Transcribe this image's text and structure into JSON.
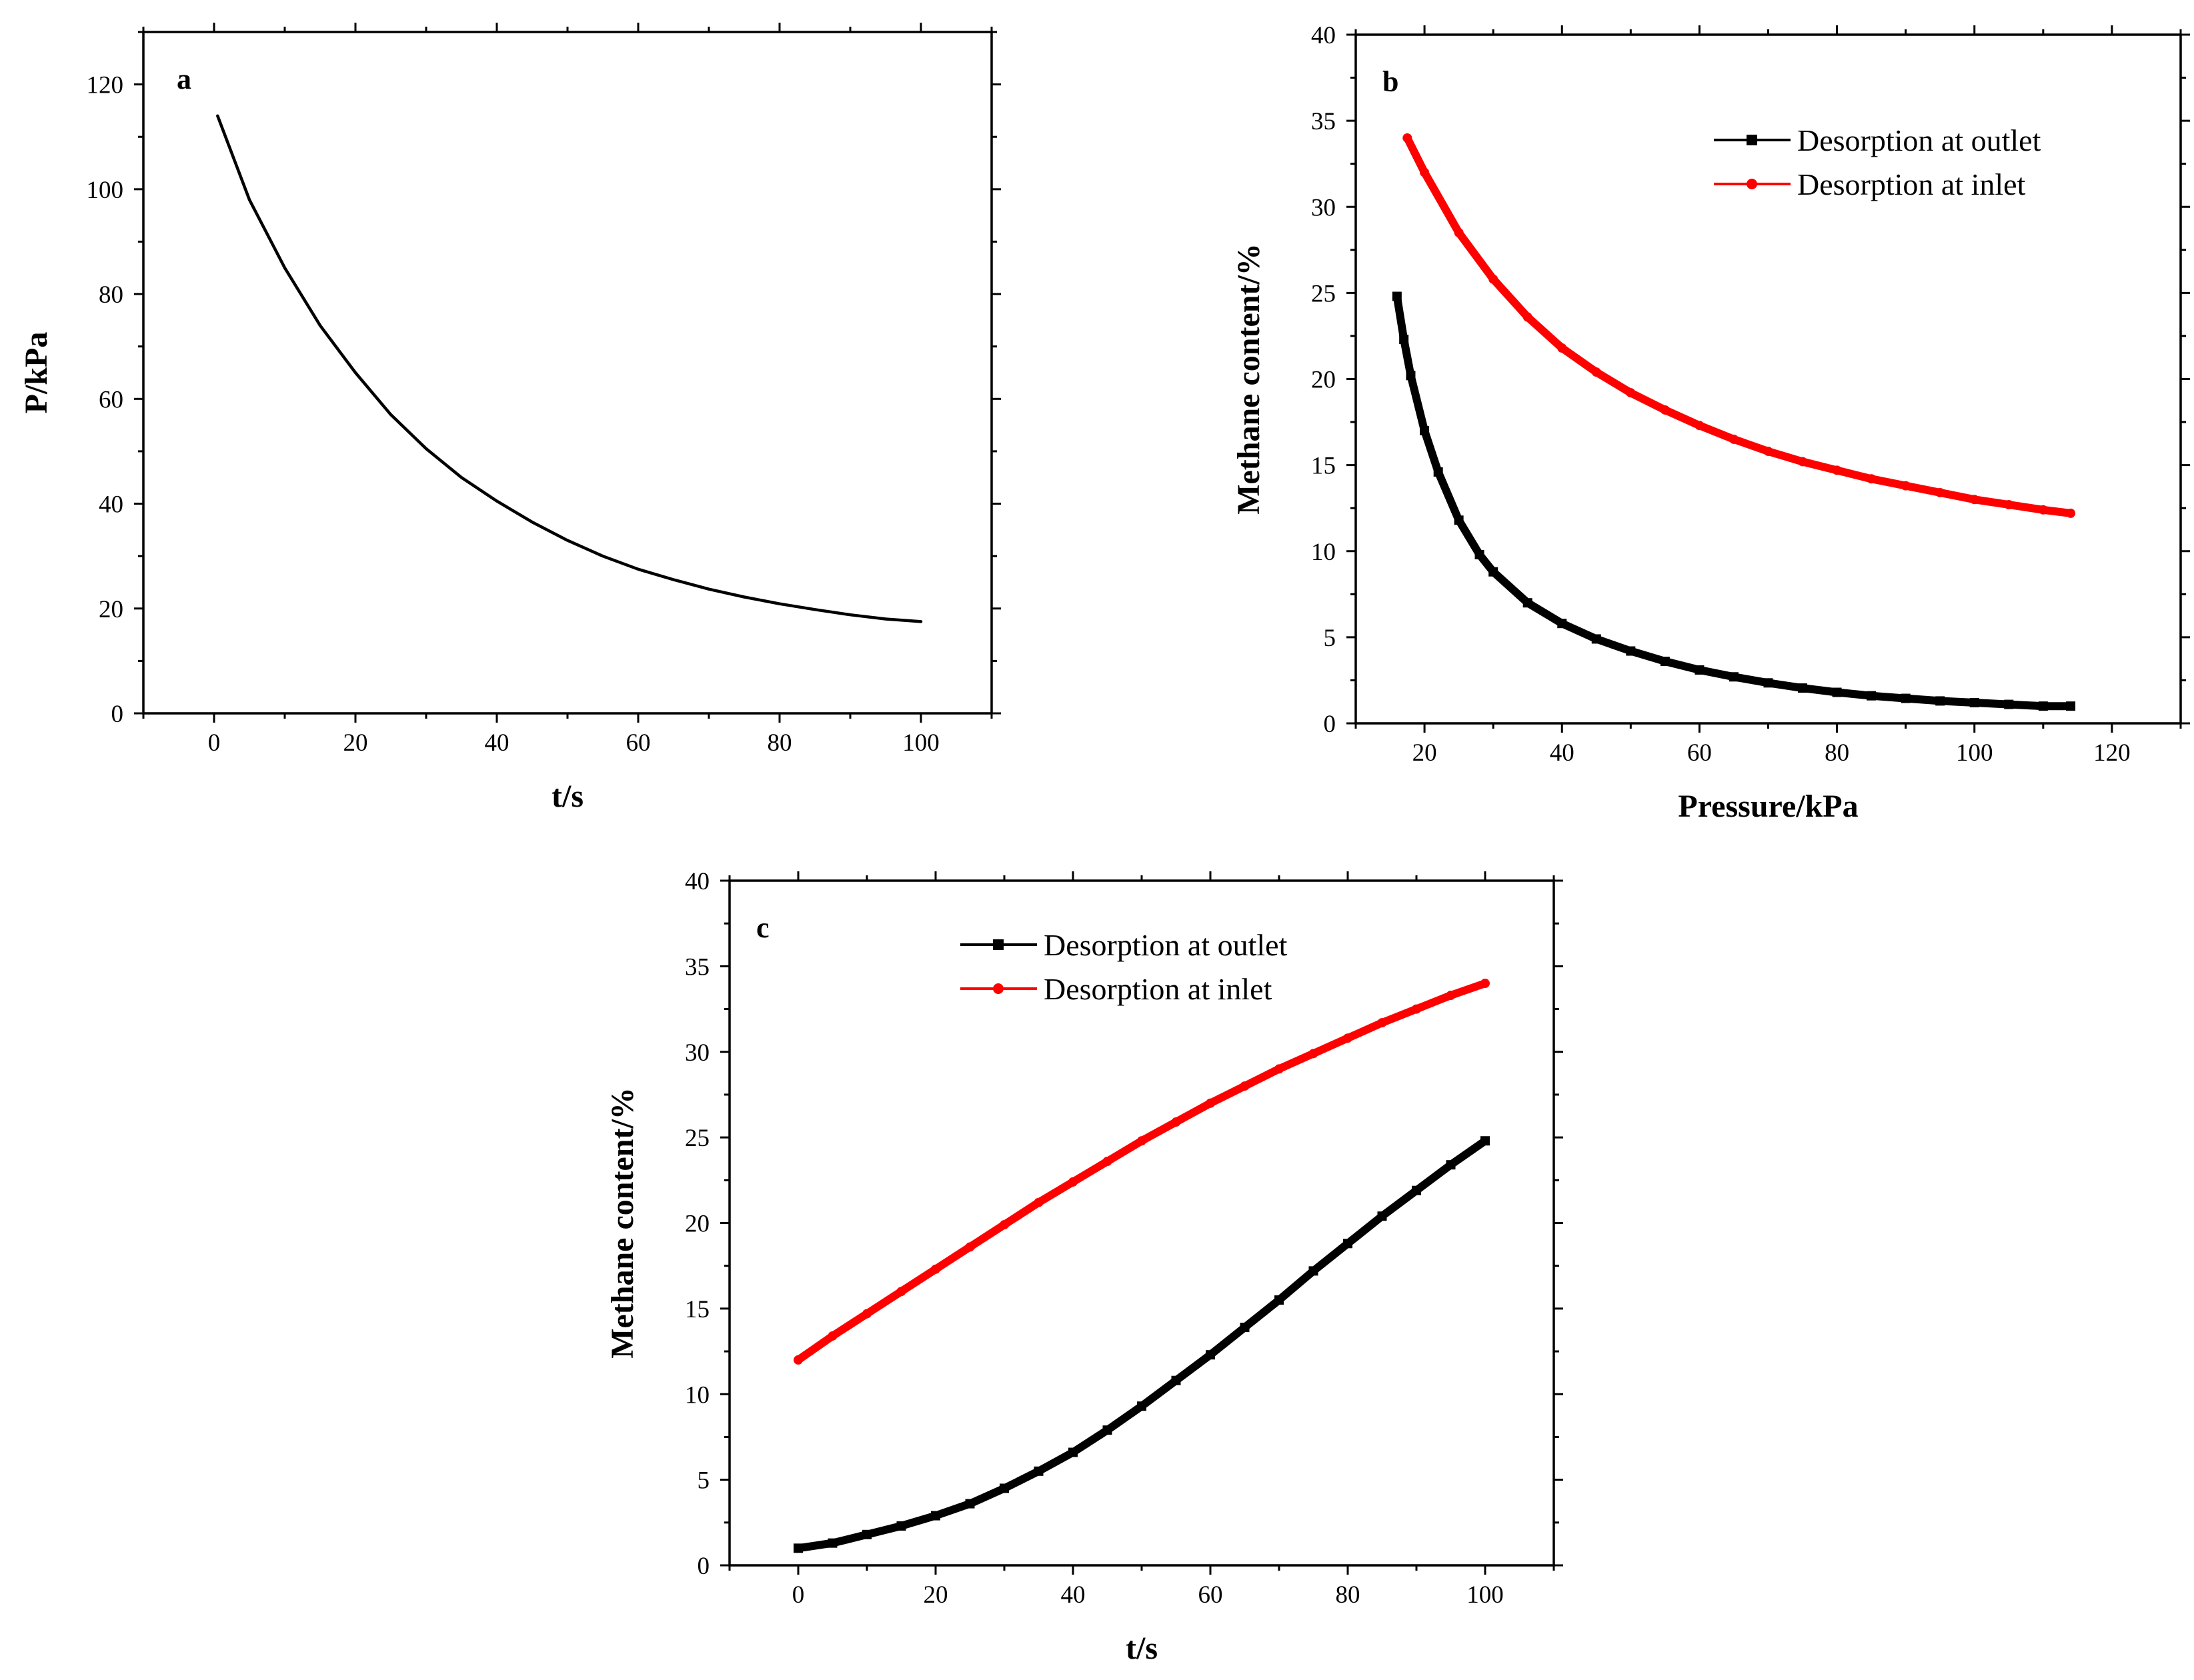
{
  "figure": {
    "description_panels": [
      "a",
      "b",
      "c"
    ]
  },
  "chart_data": [
    {
      "id": "a",
      "type": "line",
      "label": "a",
      "title": "",
      "xlabel": "t/s",
      "ylabel": "P/kPa",
      "xlim": [
        -10,
        110
      ],
      "ylim": [
        0,
        130
      ],
      "xticks": [
        0,
        20,
        40,
        60,
        80,
        100
      ],
      "yticks": [
        0,
        20,
        40,
        60,
        80,
        100,
        120
      ],
      "legend": null,
      "series": [
        {
          "name": "P",
          "color": "#000000",
          "marker": "none",
          "x": [
            0.5,
            5,
            10,
            15,
            20,
            25,
            30,
            35,
            40,
            45,
            50,
            55,
            60,
            65,
            70,
            75,
            80,
            85,
            90,
            95,
            100
          ],
          "y": [
            114,
            98,
            85,
            74,
            65,
            57,
            50.5,
            45,
            40.5,
            36.5,
            33,
            30,
            27.5,
            25.5,
            23.7,
            22.2,
            20.9,
            19.8,
            18.8,
            18.0,
            17.5
          ]
        }
      ]
    },
    {
      "id": "b",
      "type": "line",
      "label": "b",
      "title": "",
      "xlabel": "Pressure/kPa",
      "ylabel": "Methane content/%",
      "xlim": [
        10,
        130
      ],
      "ylim": [
        0,
        40
      ],
      "xticks": [
        20,
        40,
        60,
        80,
        100,
        120
      ],
      "yticks": [
        0,
        5,
        10,
        15,
        20,
        25,
        30,
        35,
        40
      ],
      "legend": "top-right",
      "series": [
        {
          "name": "Desorption at outlet",
          "color": "#000000",
          "marker": "square",
          "x": [
            16,
            17,
            18,
            20,
            22,
            25,
            28,
            30,
            35,
            40,
            45,
            50,
            55,
            60,
            65,
            70,
            75,
            80,
            85,
            90,
            95,
            100,
            105,
            110,
            114
          ],
          "y": [
            24.8,
            22.3,
            20.2,
            17.0,
            14.6,
            11.8,
            9.8,
            8.8,
            7.0,
            5.8,
            4.9,
            4.2,
            3.6,
            3.1,
            2.7,
            2.35,
            2.05,
            1.8,
            1.6,
            1.45,
            1.3,
            1.2,
            1.1,
            1.0,
            1.0
          ]
        },
        {
          "name": "Desorption at inlet",
          "color": "#ff0000",
          "marker": "circle",
          "x": [
            17.5,
            20,
            25,
            30,
            35,
            40,
            45,
            50,
            55,
            60,
            65,
            70,
            75,
            80,
            85,
            90,
            95,
            100,
            105,
            110,
            114
          ],
          "y": [
            34.0,
            32.0,
            28.5,
            25.8,
            23.6,
            21.8,
            20.4,
            19.2,
            18.2,
            17.3,
            16.5,
            15.8,
            15.2,
            14.7,
            14.2,
            13.8,
            13.4,
            13.0,
            12.7,
            12.4,
            12.2
          ]
        }
      ]
    },
    {
      "id": "c",
      "type": "line",
      "label": "c",
      "title": "",
      "xlabel": "t/s",
      "ylabel": "Methane content/%",
      "xlim": [
        -10,
        110
      ],
      "ylim": [
        0,
        40
      ],
      "xticks": [
        0,
        20,
        40,
        60,
        80,
        100
      ],
      "yticks": [
        0,
        5,
        10,
        15,
        20,
        25,
        30,
        35,
        40
      ],
      "legend": "top-center",
      "series": [
        {
          "name": "Desorption at outlet",
          "color": "#000000",
          "marker": "square",
          "x": [
            0,
            5,
            10,
            15,
            20,
            25,
            30,
            35,
            40,
            45,
            50,
            55,
            60,
            65,
            70,
            75,
            80,
            85,
            90,
            95,
            100
          ],
          "y": [
            1.0,
            1.3,
            1.8,
            2.3,
            2.9,
            3.6,
            4.5,
            5.5,
            6.6,
            7.9,
            9.3,
            10.8,
            12.3,
            13.9,
            15.5,
            17.2,
            18.8,
            20.4,
            21.9,
            23.4,
            24.8
          ]
        },
        {
          "name": "Desorption at inlet",
          "color": "#ff0000",
          "marker": "circle",
          "x": [
            0,
            5,
            10,
            15,
            20,
            25,
            30,
            35,
            40,
            45,
            50,
            55,
            60,
            65,
            70,
            75,
            80,
            85,
            90,
            95,
            100
          ],
          "y": [
            12.0,
            13.4,
            14.7,
            16.0,
            17.3,
            18.6,
            19.9,
            21.2,
            22.4,
            23.6,
            24.8,
            25.9,
            27.0,
            28.0,
            29.0,
            29.9,
            30.8,
            31.7,
            32.5,
            33.3,
            34.0
          ]
        }
      ]
    }
  ]
}
